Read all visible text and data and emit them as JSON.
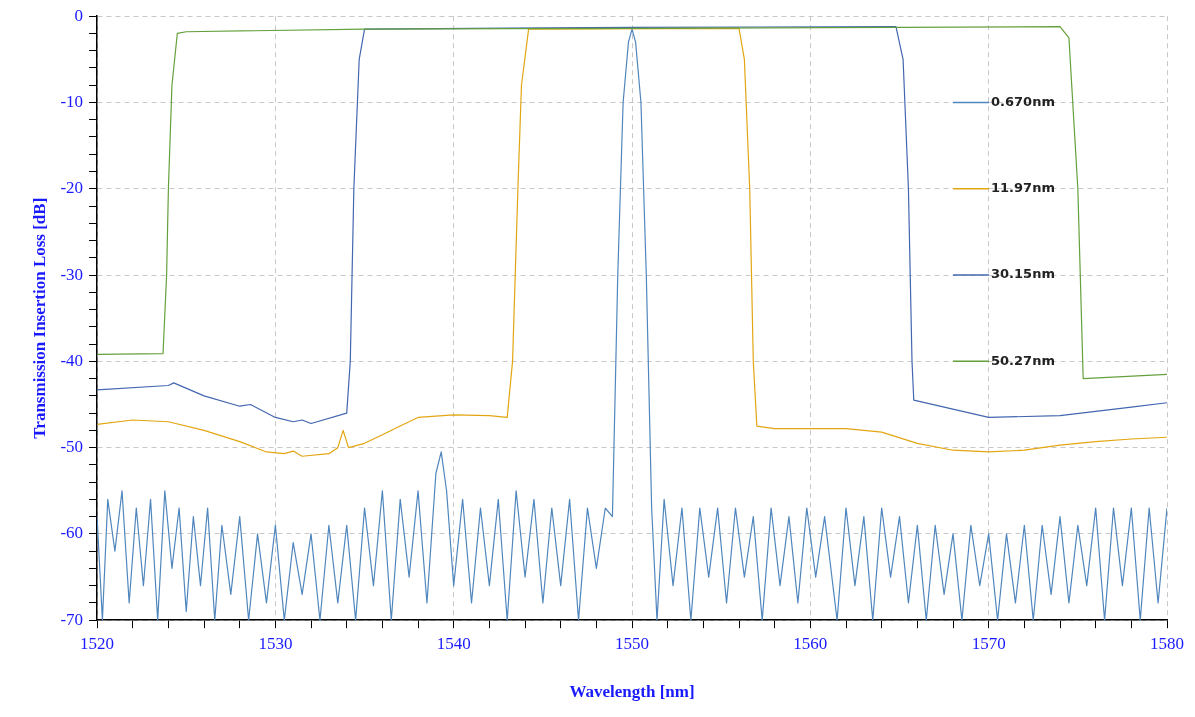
{
  "chart_data": {
    "type": "line",
    "xlabel": "Wavelength [nm]",
    "ylabel": "Transmission Insertion Loss [dB]",
    "xlim": [
      1520,
      1580
    ],
    "xticks": [
      1520,
      {
        "value": 1522,
        "label": null
      },
      {
        "value": 1524,
        "label": null
      },
      {
        "value": 1526,
        "label": null
      },
      {
        "value": 1528,
        "label": null
      },
      1530,
      {
        "value": 1532,
        "label": null
      },
      {
        "value": 1534,
        "label": null
      },
      {
        "value": 1536,
        "label": null
      },
      {
        "value": 1538,
        "label": null
      },
      1540,
      {
        "value": 1542,
        "label": null
      },
      {
        "value": 1544,
        "label": null
      },
      {
        "value": 1546,
        "label": null
      },
      {
        "value": 1548,
        "label": null
      },
      1550,
      {
        "value": 1552,
        "label": null
      },
      {
        "value": 1554,
        "label": null
      },
      {
        "value": 1556,
        "label": null
      },
      {
        "value": 1558,
        "label": null
      },
      1560,
      {
        "value": 1562,
        "label": null
      },
      {
        "value": 1564,
        "label": null
      },
      {
        "value": 1566,
        "label": null
      },
      {
        "value": 1568,
        "label": null
      },
      1570,
      {
        "value": 1572,
        "label": null
      },
      {
        "value": 1574,
        "label": null
      },
      {
        "value": 1576,
        "label": null
      },
      {
        "value": 1578,
        "label": null
      },
      1580
    ],
    "ylim": [
      -70,
      0
    ],
    "yticks": [
      -70,
      {
        "value": -68,
        "label": null
      },
      {
        "value": -66,
        "label": null
      },
      {
        "value": -64,
        "label": null
      },
      {
        "value": -62,
        "label": null
      },
      -60,
      {
        "value": -58,
        "label": null
      },
      {
        "value": -56,
        "label": null
      },
      {
        "value": -54,
        "label": null
      },
      {
        "value": -52,
        "label": null
      },
      -50,
      {
        "value": -48,
        "label": null
      },
      {
        "value": -46,
        "label": null
      },
      {
        "value": -44,
        "label": null
      },
      {
        "value": -42,
        "label": null
      },
      -40,
      {
        "value": -38,
        "label": null
      },
      {
        "value": -36,
        "label": null
      },
      {
        "value": -34,
        "label": null
      },
      {
        "value": -32,
        "label": null
      },
      -30,
      {
        "value": -28,
        "label": null
      },
      {
        "value": -26,
        "label": null
      },
      {
        "value": -24,
        "label": null
      },
      {
        "value": -22,
        "label": null
      },
      -20,
      {
        "value": -18,
        "label": null
      },
      {
        "value": -16,
        "label": null
      },
      {
        "value": -14,
        "label": null
      },
      {
        "value": -12,
        "label": null
      },
      -10,
      {
        "value": -8,
        "label": null
      },
      {
        "value": -6,
        "label": null
      },
      {
        "value": -4,
        "label": null
      },
      {
        "value": -2,
        "label": null
      },
      0
    ],
    "grid": true,
    "legend": "right",
    "marker": "none",
    "line_style": "solid",
    "series": [
      {
        "name": "0.670nm",
        "color": "#4f86bd",
        "x": [
          1520,
          1520.3,
          1520.6,
          1521,
          1521.4,
          1521.8,
          1522.2,
          1522.6,
          1523,
          1523.4,
          1523.8,
          1524.2,
          1524.6,
          1525,
          1525.4,
          1525.8,
          1526.2,
          1526.6,
          1527,
          1527.5,
          1528,
          1528.5,
          1529,
          1529.5,
          1530,
          1530.5,
          1531,
          1531.5,
          1532,
          1532.5,
          1533,
          1533.5,
          1534,
          1534.5,
          1535,
          1535.5,
          1536,
          1536.5,
          1537,
          1537.5,
          1538,
          1538.5,
          1539,
          1539.3,
          1539.6,
          1540,
          1540.5,
          1541,
          1541.5,
          1542,
          1542.5,
          1543,
          1543.5,
          1544,
          1544.5,
          1545,
          1545.5,
          1546,
          1546.5,
          1547,
          1547.5,
          1548,
          1548.5,
          1548.9,
          1549.2,
          1549.5,
          1549.8,
          1550,
          1550.2,
          1550.5,
          1550.8,
          1551.1,
          1551.4,
          1551.8,
          1552.3,
          1552.8,
          1553.3,
          1553.8,
          1554.3,
          1554.8,
          1555.3,
          1555.8,
          1556.3,
          1556.8,
          1557.3,
          1557.8,
          1558.3,
          1558.8,
          1559.3,
          1559.8,
          1560.3,
          1560.8,
          1561.5,
          1562,
          1562.5,
          1563,
          1563.5,
          1564,
          1564.5,
          1565,
          1565.5,
          1566,
          1566.5,
          1567,
          1567.5,
          1568,
          1568.5,
          1569,
          1569.5,
          1570,
          1570.5,
          1571,
          1571.5,
          1572,
          1572.5,
          1573,
          1573.5,
          1574,
          1574.5,
          1575,
          1575.5,
          1576,
          1576.5,
          1577,
          1577.5,
          1578,
          1578.5,
          1579,
          1579.5,
          1580
        ],
        "values": [
          -58,
          -70,
          -56,
          -62,
          -55,
          -68,
          -57,
          -66,
          -56,
          -70,
          -55,
          -64,
          -57,
          -69,
          -58,
          -66,
          -57,
          -70,
          -59,
          -67,
          -58,
          -70,
          -60,
          -68,
          -59,
          -70,
          -61,
          -67,
          -60,
          -70,
          -59,
          -68,
          -59,
          -70,
          -57,
          -66,
          -55,
          -70,
          -56,
          -65,
          -55,
          -68,
          -53,
          -50.5,
          -55,
          -66,
          -56,
          -68,
          -57,
          -66,
          -56,
          -70,
          -55,
          -65,
          -56,
          -68,
          -57,
          -66,
          -56,
          -70,
          -57,
          -64,
          -57,
          -58,
          -30,
          -10,
          -3,
          -1.5,
          -3,
          -10,
          -30,
          -57,
          -70,
          -56,
          -66,
          -57,
          -70,
          -57,
          -65,
          -57,
          -68,
          -57,
          -65,
          -58,
          -70,
          -57,
          -66,
          -58,
          -68,
          -57,
          -65,
          -58,
          -70,
          -57,
          -66,
          -58,
          -70,
          -57,
          -65,
          -58,
          -68,
          -59,
          -70,
          -59,
          -67,
          -60,
          -70,
          -59,
          -66,
          -60,
          -70,
          -60,
          -68,
          -59,
          -70,
          -59,
          -67,
          -58,
          -68,
          -59,
          -66,
          -57,
          -70,
          -57,
          -66,
          -57,
          -70,
          -57,
          -68,
          -57
        ]
      },
      {
        "name": "11.97nm",
        "color": "#e3a612",
        "x": [
          1520,
          1522,
          1524,
          1526,
          1528,
          1529.5,
          1530.5,
          1531,
          1531.5,
          1533,
          1533.5,
          1533.8,
          1534.1,
          1535,
          1536,
          1537,
          1538,
          1540,
          1542,
          1543,
          1543.3,
          1543.6,
          1543.8,
          1544.2,
          1556,
          1556.3,
          1556.6,
          1556.8,
          1557,
          1558,
          1562,
          1564,
          1566,
          1568,
          1570,
          1572,
          1574,
          1576,
          1578,
          1580
        ],
        "values": [
          -47.3,
          -46.8,
          -47,
          -48,
          -49.3,
          -50.5,
          -50.7,
          -50.4,
          -51,
          -50.7,
          -50,
          -48,
          -50,
          -49.5,
          -48.5,
          -47.5,
          -46.5,
          -46.2,
          -46.3,
          -46.5,
          -40,
          -20,
          -8,
          -1.5,
          -1.4,
          -5,
          -20,
          -40,
          -47.5,
          -47.8,
          -47.8,
          -48.2,
          -49.5,
          -50.3,
          -50.5,
          -50.3,
          -49.7,
          -49.3,
          -49,
          -48.8
        ]
      },
      {
        "name": "30.15nm",
        "color": "#4366b0",
        "x": [
          1520,
          1524,
          1524.3,
          1526,
          1528,
          1528.6,
          1530,
          1531,
          1531.5,
          1532,
          1534,
          1534.2,
          1534.4,
          1534.7,
          1535,
          1550,
          1564.8,
          1565.2,
          1565.5,
          1565.7,
          1565.8,
          1570,
          1574,
          1578,
          1580
        ],
        "values": [
          -43.3,
          -42.8,
          -42.5,
          -44,
          -45.2,
          -45,
          -46.5,
          -47,
          -46.8,
          -47.2,
          -46,
          -40,
          -20,
          -5,
          -1.5,
          -1.3,
          -1.2,
          -5,
          -20,
          -40,
          -44.5,
          -46.5,
          -46.3,
          -45.3,
          -44.8
        ]
      },
      {
        "name": "50.27nm",
        "color": "#64a03c",
        "x": [
          1520,
          1523.7,
          1523.9,
          1524,
          1524.2,
          1524.5,
          1525,
          1535,
          1550,
          1565,
          1574,
          1574.5,
          1575,
          1575.3,
          1580
        ],
        "values": [
          -39.2,
          -39.1,
          -30,
          -20,
          -8,
          -2,
          -1.8,
          -1.5,
          -1.4,
          -1.3,
          -1.2,
          -2.5,
          -20,
          -42,
          -41.5
        ]
      }
    ]
  }
}
